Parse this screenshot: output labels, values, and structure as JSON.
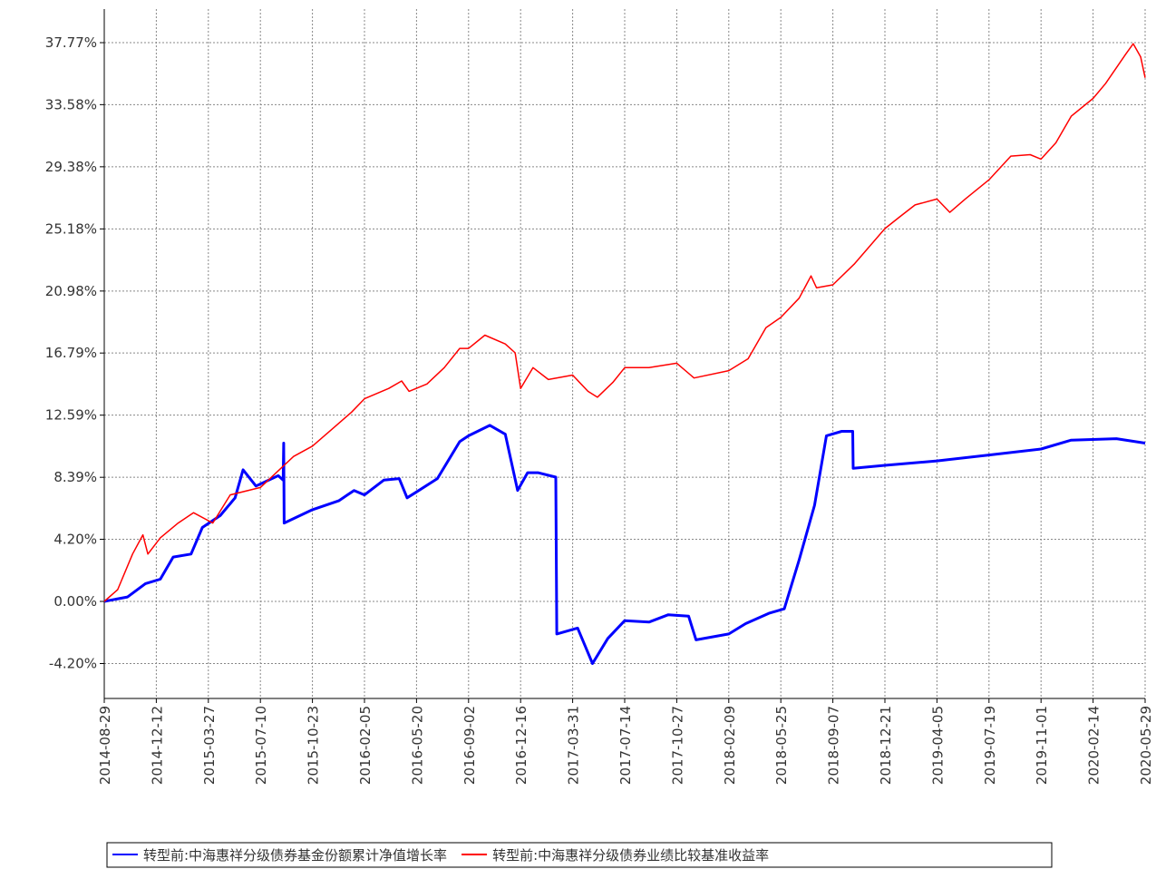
{
  "chart_data": {
    "type": "line",
    "series": [
      {
        "name": "转型前:中海惠祥分级债券基金份额累计净值增长率",
        "color": "#0000ff",
        "x": [
          "2014-08-29",
          "2014-10-15",
          "2014-11-20",
          "2014-12-20",
          "2015-01-15",
          "2015-02-20",
          "2015-03-15",
          "2015-04-20",
          "2015-05-20",
          "2015-06-05",
          "2015-07-01",
          "2015-08-15",
          "2015-08-25",
          "2015-08-26",
          "2015-08-27",
          "2015-10-23",
          "2015-12-15",
          "2016-01-15",
          "2016-02-05",
          "2016-03-15",
          "2016-04-15",
          "2016-05-01",
          "2016-05-20",
          "2016-07-01",
          "2016-08-15",
          "2016-09-02",
          "2016-10-15",
          "2016-11-15",
          "2016-12-10",
          "2016-12-30",
          "2017-01-20",
          "2017-02-25",
          "2017-02-27",
          "2017-04-10",
          "2017-04-25",
          "2017-05-10",
          "2017-06-10",
          "2017-07-14",
          "2017-09-01",
          "2017-10-10",
          "2017-11-20",
          "2017-12-05",
          "2018-02-09",
          "2018-03-15",
          "2018-05-01",
          "2018-06-01",
          "2018-07-01",
          "2018-08-01",
          "2018-08-25",
          "2018-09-25",
          "2018-10-17",
          "2018-10-18",
          "2018-12-21",
          "2019-04-05",
          "2019-07-19",
          "2019-11-01",
          "2020-01-01",
          "2020-04-01",
          "2020-05-29"
        ],
        "values": [
          0,
          0.3,
          1.2,
          1.5,
          3.0,
          3.2,
          5.0,
          5.8,
          7.0,
          8.9,
          7.8,
          8.5,
          8.2,
          10.7,
          5.3,
          6.2,
          6.8,
          7.5,
          7.2,
          8.2,
          8.3,
          7.0,
          7.4,
          8.3,
          10.8,
          11.2,
          11.9,
          11.3,
          7.5,
          8.7,
          8.7,
          8.4,
          -2.2,
          -1.8,
          -3.0,
          -4.2,
          -2.5,
          -1.3,
          -1.4,
          -0.9,
          -1.0,
          -2.6,
          -2.2,
          -1.5,
          -0.8,
          -0.5,
          2.8,
          6.5,
          11.2,
          11.5,
          11.5,
          9.0,
          9.2,
          9.5,
          9.9,
          10.3,
          10.9,
          11.0,
          10.7
        ]
      },
      {
        "name": "转型前:中海惠祥分级债券业绩比较基准收益率",
        "color": "#ff0000",
        "x": [
          "2014-08-29",
          "2014-09-25",
          "2014-10-25",
          "2014-11-15",
          "2014-11-25",
          "2014-12-20",
          "2015-01-25",
          "2015-02-25",
          "2015-04-05",
          "2015-05-10",
          "2015-07-10",
          "2015-09-15",
          "2015-10-23",
          "2015-11-30",
          "2016-01-10",
          "2016-02-05",
          "2016-03-25",
          "2016-04-20",
          "2016-05-05",
          "2016-06-10",
          "2016-07-15",
          "2016-08-15",
          "2016-09-02",
          "2016-10-05",
          "2016-11-15",
          "2016-12-05",
          "2016-12-16",
          "2017-01-10",
          "2017-02-10",
          "2017-03-31",
          "2017-05-01",
          "2017-05-20",
          "2017-06-20",
          "2017-07-14",
          "2017-09-01",
          "2017-10-27",
          "2017-12-01",
          "2018-02-09",
          "2018-03-20",
          "2018-04-25",
          "2018-05-25",
          "2018-07-01",
          "2018-07-25",
          "2018-08-05",
          "2018-09-07",
          "2018-10-20",
          "2018-12-21",
          "2019-01-20",
          "2019-02-20",
          "2019-04-05",
          "2019-05-01",
          "2019-06-01",
          "2019-07-19",
          "2019-09-01",
          "2019-10-10",
          "2019-11-01",
          "2019-12-01",
          "2020-01-01",
          "2020-02-14",
          "2020-03-10",
          "2020-04-20",
          "2020-05-05",
          "2020-05-20",
          "2020-05-29"
        ],
        "values": [
          0,
          0.8,
          3.2,
          4.5,
          3.2,
          4.3,
          5.3,
          6.0,
          5.3,
          7.2,
          7.7,
          9.8,
          10.5,
          11.6,
          12.8,
          13.7,
          14.4,
          14.9,
          14.2,
          14.7,
          15.8,
          17.1,
          17.1,
          18.0,
          17.4,
          16.8,
          14.4,
          15.8,
          15.0,
          15.3,
          14.2,
          13.8,
          14.8,
          15.8,
          15.8,
          16.1,
          15.1,
          15.6,
          16.4,
          18.5,
          19.2,
          20.5,
          22.0,
          21.2,
          21.4,
          22.8,
          25.2,
          26.0,
          26.8,
          27.2,
          26.3,
          27.2,
          28.5,
          30.1,
          30.2,
          29.9,
          31.0,
          32.8,
          34.0,
          35.0,
          37.0,
          37.7,
          36.8,
          35.4
        ]
      }
    ],
    "xlim": [
      "2014-08-29",
      "2020-05-29"
    ],
    "xticks": [
      "2014-08-29",
      "2014-12-12",
      "2015-03-27",
      "2015-07-10",
      "2015-10-23",
      "2016-02-05",
      "2016-05-20",
      "2016-09-02",
      "2016-12-16",
      "2017-03-31",
      "2017-07-14",
      "2017-10-27",
      "2018-02-09",
      "2018-05-25",
      "2018-09-07",
      "2018-12-21",
      "2019-04-05",
      "2019-07-19",
      "2019-11-01",
      "2020-02-14",
      "2020-05-29"
    ],
    "ylim": [
      -6.56,
      40.04
    ],
    "yticks": [
      {
        "value": -4.2,
        "label": "-4.20%"
      },
      {
        "value": 0,
        "label": "0.00%"
      },
      {
        "value": 4.2,
        "label": "4.20%"
      },
      {
        "value": 8.39,
        "label": "8.39%"
      },
      {
        "value": 12.59,
        "label": "12.59%"
      },
      {
        "value": 16.79,
        "label": "16.79%"
      },
      {
        "value": 20.98,
        "label": "20.98%"
      },
      {
        "value": 25.18,
        "label": "25.18%"
      },
      {
        "value": 29.38,
        "label": "29.38%"
      },
      {
        "value": 33.58,
        "label": "33.58%"
      },
      {
        "value": 37.77,
        "label": "37.77%"
      }
    ],
    "grid": true
  }
}
